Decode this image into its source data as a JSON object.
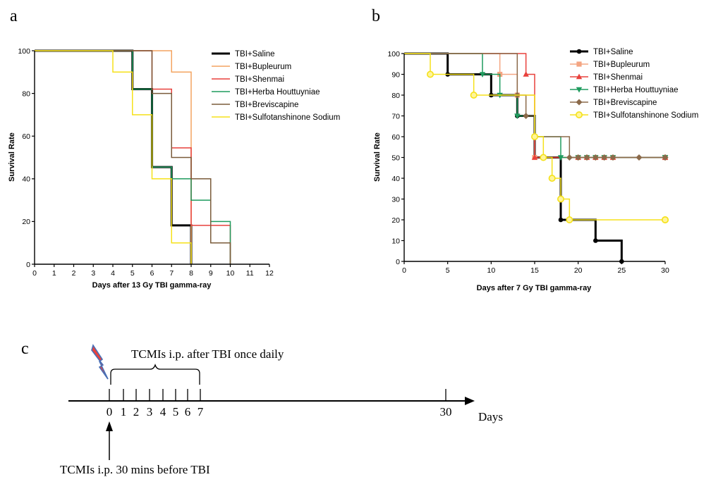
{
  "panels": {
    "a": "a",
    "b": "b",
    "c": "c"
  },
  "chart_data": [
    {
      "id": "a",
      "type": "line",
      "step": true,
      "xlabel": "Days after 13 Gy TBI  gamma-ray",
      "ylabel": "Survival Rate",
      "xlim": [
        0,
        12
      ],
      "ylim": [
        0,
        100
      ],
      "xticks": [
        0,
        1,
        2,
        3,
        4,
        5,
        6,
        7,
        8,
        9,
        10,
        11,
        12
      ],
      "yticks": [
        0,
        20,
        40,
        60,
        80,
        100
      ],
      "legend_position": "top-right",
      "series": [
        {
          "name": "TBI+Saline",
          "color": "#000000",
          "x": [
            0,
            5,
            6,
            7,
            8
          ],
          "y": [
            100,
            82,
            45.5,
            18.2,
            0
          ]
        },
        {
          "name": "TBI+Bupleurum",
          "color": "#f4a460",
          "x": [
            0,
            7,
            8
          ],
          "y": [
            100,
            90,
            0
          ]
        },
        {
          "name": "TBI+Shenmai",
          "color": "#e8413c",
          "x": [
            0,
            6,
            7,
            8,
            10
          ],
          "y": [
            100,
            82,
            54.5,
            18.2,
            0
          ]
        },
        {
          "name": "TBI+Herba Houttuyniae",
          "color": "#1f9b5e",
          "x": [
            0,
            5,
            6,
            7,
            8,
            9,
            10
          ],
          "y": [
            100,
            82,
            45.5,
            40,
            30,
            20,
            0
          ]
        },
        {
          "name": "TBI+Breviscapine",
          "color": "#7a5b3a",
          "x": [
            0,
            6,
            7,
            8,
            9,
            10
          ],
          "y": [
            100,
            80,
            50,
            40,
            10,
            0
          ]
        },
        {
          "name": "TBI+Sulfotanshinone Sodium",
          "color": "#f5e11a",
          "x": [
            0,
            4,
            5,
            6,
            7,
            8
          ],
          "y": [
            100,
            90,
            70,
            40,
            10,
            0
          ]
        }
      ]
    },
    {
      "id": "b",
      "type": "line",
      "step": true,
      "xlabel": "Days after 7 Gy TBI gamma-ray",
      "ylabel": "Survival Rate",
      "xlim": [
        0,
        30
      ],
      "ylim": [
        0,
        100
      ],
      "xticks": [
        0,
        5,
        10,
        15,
        20,
        25,
        30
      ],
      "yticks": [
        0,
        10,
        20,
        30,
        40,
        50,
        60,
        70,
        80,
        90,
        100
      ],
      "legend_position": "top-right",
      "series": [
        {
          "name": "TBI+Saline",
          "color": "#000000",
          "marker": "circle",
          "x": [
            0,
            5,
            10,
            13,
            15,
            18,
            22,
            25
          ],
          "y": [
            100,
            90,
            80,
            70,
            50,
            20,
            10,
            0
          ]
        },
        {
          "name": "TBI+Bupleurum",
          "color": "#f4a582",
          "marker": "square",
          "x": [
            0,
            11,
            13,
            15,
            30
          ],
          "y": [
            100,
            90,
            80,
            50,
            50
          ]
        },
        {
          "name": "TBI+Shenmai",
          "color": "#e8413c",
          "marker": "triangle-up",
          "x": [
            0,
            14,
            15,
            30
          ],
          "y": [
            100,
            90,
            50,
            50
          ]
        },
        {
          "name": "TBI+Herba Houttuyniae",
          "color": "#1f9b5e",
          "marker": "triangle-down",
          "x": [
            0,
            9,
            11,
            13,
            15,
            18,
            30
          ],
          "y": [
            100,
            90,
            80,
            70,
            60,
            50,
            50
          ]
        },
        {
          "name": "TBI+Breviscapine",
          "color": "#8b6a4a",
          "marker": "diamond",
          "x": [
            0,
            13,
            14,
            15,
            19,
            30
          ],
          "y": [
            100,
            80,
            70,
            60,
            50,
            50
          ]
        },
        {
          "name": "TBI+Sulfotanshinone Sodium",
          "color": "#f5e11a",
          "marker": "circle-open",
          "x": [
            0,
            3,
            8,
            15,
            16,
            17,
            18,
            19,
            30
          ],
          "y": [
            100,
            90,
            80,
            60,
            50,
            40,
            30,
            20,
            20
          ]
        }
      ]
    }
  ],
  "timeline": {
    "bracket_label": "TCMIs i.p. after TBI once daily",
    "bottom_label": "TCMIs i.p. 30 mins before TBI",
    "axis_label": "Days",
    "ticks": [
      "0",
      "1",
      "2",
      "3",
      "4",
      "5",
      "6",
      "7",
      "30"
    ],
    "lightning_color": "#e8413c",
    "lightning_outline": "#4a6fb5"
  }
}
